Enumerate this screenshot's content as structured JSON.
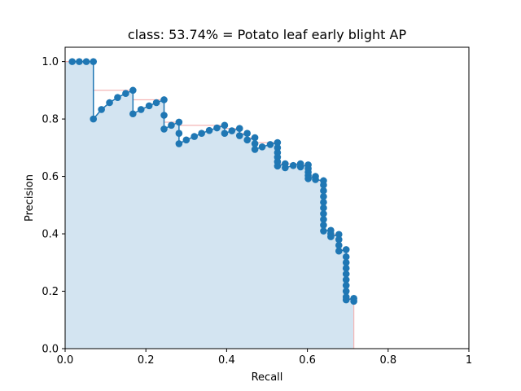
{
  "chart_data": {
    "type": "line",
    "title": "class: 53.74% = Potato leaf early blight AP",
    "xlabel": "Recall",
    "ylabel": "Precision",
    "xlim": [
      0,
      1
    ],
    "ylim": [
      0,
      1.05
    ],
    "x_ticks": [
      "0.0",
      "0.2",
      "0.4",
      "0.6",
      "0.8",
      "1"
    ],
    "y_ticks": [
      "0.0",
      "0.2",
      "0.4",
      "0.6",
      "0.8",
      "1.0"
    ],
    "grid": false,
    "legend": "none",
    "colors": {
      "line": "#1f77b4",
      "area_fill": "#d3e4f1",
      "envelope": "#f4b6b6"
    },
    "series": [
      {
        "points": [
          [
            0.0175,
            1.0
          ],
          [
            0.035,
            1.0
          ],
          [
            0.0525,
            1.0
          ],
          [
            0.07,
            1.0
          ],
          [
            0.07,
            0.8
          ],
          [
            0.09,
            0.833
          ],
          [
            0.11,
            0.857
          ],
          [
            0.13,
            0.875
          ],
          [
            0.15,
            0.889
          ],
          [
            0.168,
            0.9
          ],
          [
            0.168,
            0.818
          ],
          [
            0.188,
            0.833
          ],
          [
            0.208,
            0.846
          ],
          [
            0.226,
            0.857
          ],
          [
            0.245,
            0.867
          ],
          [
            0.245,
            0.813
          ],
          [
            0.245,
            0.765
          ],
          [
            0.263,
            0.778
          ],
          [
            0.282,
            0.789
          ],
          [
            0.282,
            0.75
          ],
          [
            0.282,
            0.714
          ],
          [
            0.3,
            0.727
          ],
          [
            0.32,
            0.739
          ],
          [
            0.338,
            0.75
          ],
          [
            0.357,
            0.76
          ],
          [
            0.376,
            0.769
          ],
          [
            0.395,
            0.778
          ],
          [
            0.395,
            0.75
          ],
          [
            0.413,
            0.759
          ],
          [
            0.432,
            0.767
          ],
          [
            0.432,
            0.742
          ],
          [
            0.451,
            0.75
          ],
          [
            0.451,
            0.727
          ],
          [
            0.47,
            0.735
          ],
          [
            0.47,
            0.714
          ],
          [
            0.47,
            0.694
          ],
          [
            0.488,
            0.703
          ],
          [
            0.508,
            0.711
          ],
          [
            0.526,
            0.718
          ],
          [
            0.526,
            0.7
          ],
          [
            0.526,
            0.683
          ],
          [
            0.526,
            0.667
          ],
          [
            0.526,
            0.651
          ],
          [
            0.526,
            0.636
          ],
          [
            0.545,
            0.644
          ],
          [
            0.545,
            0.63
          ],
          [
            0.565,
            0.638
          ],
          [
            0.583,
            0.644
          ],
          [
            0.583,
            0.633
          ],
          [
            0.602,
            0.64
          ],
          [
            0.602,
            0.627
          ],
          [
            0.602,
            0.615
          ],
          [
            0.602,
            0.603
          ],
          [
            0.602,
            0.592
          ],
          [
            0.62,
            0.6
          ],
          [
            0.62,
            0.589
          ],
          [
            0.64,
            0.585
          ],
          [
            0.64,
            0.57
          ],
          [
            0.64,
            0.55
          ],
          [
            0.64,
            0.53
          ],
          [
            0.64,
            0.51
          ],
          [
            0.64,
            0.49
          ],
          [
            0.64,
            0.47
          ],
          [
            0.64,
            0.45
          ],
          [
            0.64,
            0.43
          ],
          [
            0.64,
            0.41
          ],
          [
            0.658,
            0.412
          ],
          [
            0.658,
            0.4
          ],
          [
            0.658,
            0.39
          ],
          [
            0.678,
            0.398
          ],
          [
            0.678,
            0.38
          ],
          [
            0.678,
            0.36
          ],
          [
            0.678,
            0.34
          ],
          [
            0.696,
            0.345
          ],
          [
            0.696,
            0.32
          ],
          [
            0.696,
            0.3
          ],
          [
            0.696,
            0.28
          ],
          [
            0.696,
            0.26
          ],
          [
            0.696,
            0.24
          ],
          [
            0.696,
            0.22
          ],
          [
            0.696,
            0.2
          ],
          [
            0.696,
            0.18
          ],
          [
            0.696,
            0.17
          ],
          [
            0.715,
            0.175
          ],
          [
            0.715,
            0.165
          ]
        ]
      }
    ],
    "interpolated_envelope": [
      [
        0.0,
        1.0
      ],
      [
        0.07,
        1.0
      ],
      [
        0.07,
        0.9
      ],
      [
        0.168,
        0.9
      ],
      [
        0.168,
        0.867
      ],
      [
        0.245,
        0.867
      ],
      [
        0.245,
        0.789
      ],
      [
        0.282,
        0.789
      ],
      [
        0.282,
        0.778
      ],
      [
        0.395,
        0.778
      ],
      [
        0.395,
        0.767
      ],
      [
        0.432,
        0.767
      ],
      [
        0.432,
        0.75
      ],
      [
        0.451,
        0.75
      ],
      [
        0.451,
        0.735
      ],
      [
        0.47,
        0.735
      ],
      [
        0.47,
        0.718
      ],
      [
        0.526,
        0.718
      ],
      [
        0.526,
        0.644
      ],
      [
        0.583,
        0.644
      ],
      [
        0.583,
        0.64
      ],
      [
        0.602,
        0.64
      ],
      [
        0.602,
        0.6
      ],
      [
        0.62,
        0.6
      ],
      [
        0.62,
        0.585
      ],
      [
        0.64,
        0.585
      ],
      [
        0.64,
        0.412
      ],
      [
        0.658,
        0.412
      ],
      [
        0.658,
        0.398
      ],
      [
        0.678,
        0.398
      ],
      [
        0.678,
        0.345
      ],
      [
        0.696,
        0.345
      ],
      [
        0.696,
        0.175
      ],
      [
        0.715,
        0.175
      ],
      [
        0.715,
        0.0
      ]
    ]
  }
}
